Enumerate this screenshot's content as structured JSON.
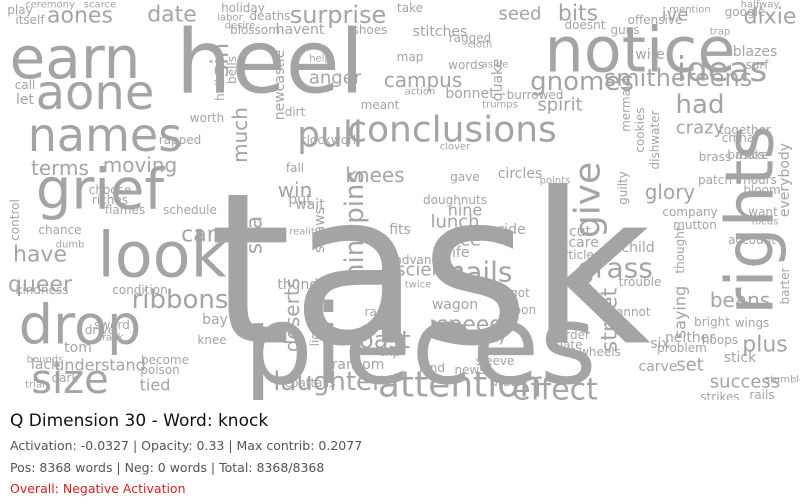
{
  "title": "Q Dimension 30 - Word: knock",
  "stats_line": "Activation: -0.0327 | Opacity: 0.33 | Max contrib: 0.2077",
  "counts_line": "Pos: 8368 words | Neg: 0 words | Total: 8368/8368",
  "overall_line": "Overall: Negative Activation",
  "colors": {
    "word": "#a4a4a4",
    "overall": "#d42020",
    "title": "#111111",
    "stats": "#555555"
  },
  "words": [
    "task",
    "pieces",
    "heel",
    "notice",
    "earn",
    "aone",
    "names",
    "grief",
    "look",
    "rights",
    "drop",
    "size",
    "attention",
    "effect",
    "laughter",
    "ribbons",
    "pull",
    "conclusions",
    "nails",
    "grass",
    "ideas",
    "give",
    "gnomes",
    "smithereens",
    "surprise",
    "aones",
    "date",
    "seed",
    "bits",
    "ive",
    "dixie",
    "had",
    "crazy",
    "spirit",
    "knees",
    "ninepins",
    "science",
    "speed",
    "toast",
    "have",
    "queer",
    "terms",
    "moving",
    "care",
    "win",
    "sea",
    "deserts",
    "lunch",
    "street",
    "glory",
    "beans",
    "plus",
    "success",
    "campus",
    "anger",
    "let",
    "call",
    "itself",
    "play",
    "sin",
    "much",
    "fall",
    "wait",
    "put",
    "fits",
    "ice",
    "ride",
    "cut",
    "scare",
    "child",
    "account",
    "everybody",
    "china",
    "brass",
    "make",
    "hours",
    "bloom",
    "want",
    "focus",
    "wings",
    "stick",
    "bright",
    "neither",
    "six",
    "wagon",
    "got",
    "murder",
    "slate",
    "set",
    "saying",
    "carve",
    "tied",
    "lack",
    "understand",
    "tom",
    "become",
    "poison",
    "dark",
    "trial",
    "nine",
    "article",
    "advance",
    "thought",
    "company",
    "mutton",
    "trouble",
    "bay",
    "knee",
    "sword",
    "condition",
    "kindness",
    "strictly",
    "drew",
    "coattails",
    "ransom",
    "trip",
    "lend",
    "news",
    "sleeve",
    "wife",
    "circles",
    "points",
    "gave",
    "doughnuts",
    "bonnet",
    "quake",
    "words",
    "ragged",
    "stitches",
    "shoes",
    "deaths",
    "holiday",
    "havent",
    "help",
    "map",
    "clover",
    "rapped",
    "schedule",
    "flames",
    "riches",
    "choose",
    "control",
    "hall",
    "bells",
    "worth",
    "newcastle",
    "dirt",
    "clockwork",
    "reality",
    "thunder",
    "lightning",
    "straws",
    "twice",
    "range",
    "spoon",
    "cannot",
    "barter",
    "hoops",
    "problem",
    "strikes",
    "rails",
    "stumble",
    "google",
    "offensive",
    "guns",
    "doesnt",
    "blazes",
    "surf",
    "wire",
    "take",
    "scarce",
    "ceremony",
    "halfway",
    "mention",
    "blossom",
    "desire",
    "labor",
    "trumps",
    "guilty",
    "mermaid",
    "cookies",
    "dishwater",
    "together",
    "basics",
    "patch",
    "trap",
    "burrowed",
    "meant",
    "action",
    "cloth",
    "aside",
    "drive",
    "crack",
    "dumb",
    "wheels",
    "bounds",
    "chance",
    "weeks",
    "teeth"
  ]
}
